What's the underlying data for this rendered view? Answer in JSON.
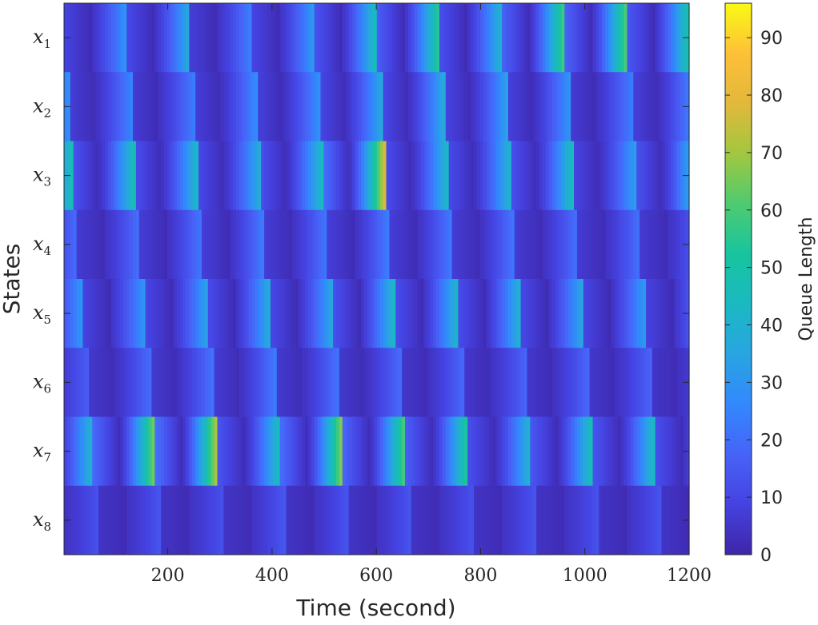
{
  "chart_data": {
    "type": "heatmap",
    "xlabel": "Time (second)",
    "ylabel": "States",
    "xlim": [
      1,
      1200
    ],
    "x_ticks": [
      "200",
      "400",
      "600",
      "800",
      "1000",
      "1200"
    ],
    "x_tick_values": [
      200,
      400,
      600,
      800,
      1000,
      1200
    ],
    "rows": [
      {
        "label": "x",
        "sub": "1",
        "cycle_start": 0,
        "cycle_length": 120,
        "peak_value": 58,
        "peak_values": [
          28,
          35,
          22,
          30,
          45,
          55,
          40,
          60,
          62,
          50
        ]
      },
      {
        "label": "x",
        "sub": "2",
        "cycle_start": 8,
        "cycle_length": 120,
        "peak_value": 34,
        "peak_values": [
          22,
          20,
          24,
          25,
          33,
          34,
          30,
          26,
          20,
          25
        ]
      },
      {
        "label": "x",
        "sub": "3",
        "cycle_start": 15,
        "cycle_length": 120,
        "peak_value": 45,
        "peak_values": [
          45,
          40,
          35,
          42,
          76,
          40,
          38,
          44,
          30,
          45
        ]
      },
      {
        "label": "x",
        "sub": "4",
        "cycle_start": 25,
        "cycle_length": 120,
        "peak_value": 22,
        "peak_values": [
          18,
          20,
          22,
          20,
          22,
          21,
          20,
          18,
          18,
          17
        ]
      },
      {
        "label": "x",
        "sub": "5",
        "cycle_start": 35,
        "cycle_length": 120,
        "peak_value": 38,
        "peak_values": [
          28,
          32,
          36,
          34,
          42,
          40,
          38,
          34,
          30,
          28
        ]
      },
      {
        "label": "x",
        "sub": "6",
        "cycle_start": 45,
        "cycle_length": 120,
        "peak_value": 18,
        "peak_values": [
          16,
          18,
          20,
          18,
          16,
          15,
          14,
          15,
          14,
          12
        ]
      },
      {
        "label": "x",
        "sub": "7",
        "cycle_start": 55,
        "cycle_length": 120,
        "peak_value": 60,
        "peak_values": [
          68,
          75,
          45,
          70,
          62,
          55,
          40,
          48,
          45,
          40
        ]
      },
      {
        "label": "x",
        "sub": "8",
        "cycle_start": 65,
        "cycle_length": 120,
        "peak_value": 10,
        "peak_values": [
          10,
          9,
          11,
          10,
          10,
          9,
          10,
          9,
          10,
          9
        ]
      }
    ],
    "colorbar": {
      "label": "Queue Length",
      "range": [
        0,
        96
      ],
      "ticks": [
        "0",
        "10",
        "20",
        "30",
        "40",
        "50",
        "60",
        "70",
        "80",
        "90"
      ],
      "tick_values": [
        0,
        10,
        20,
        30,
        40,
        50,
        60,
        70,
        80,
        90
      ],
      "colormap": [
        "#3e26a8",
        "#4542e0",
        "#4763f8",
        "#3388fd",
        "#28a5e1",
        "#1ab9c2",
        "#18c49e",
        "#4ecb70",
        "#a2c740",
        "#e2b83b",
        "#fec038",
        "#f9fa14"
      ]
    },
    "grid": false,
    "legend": "none"
  }
}
